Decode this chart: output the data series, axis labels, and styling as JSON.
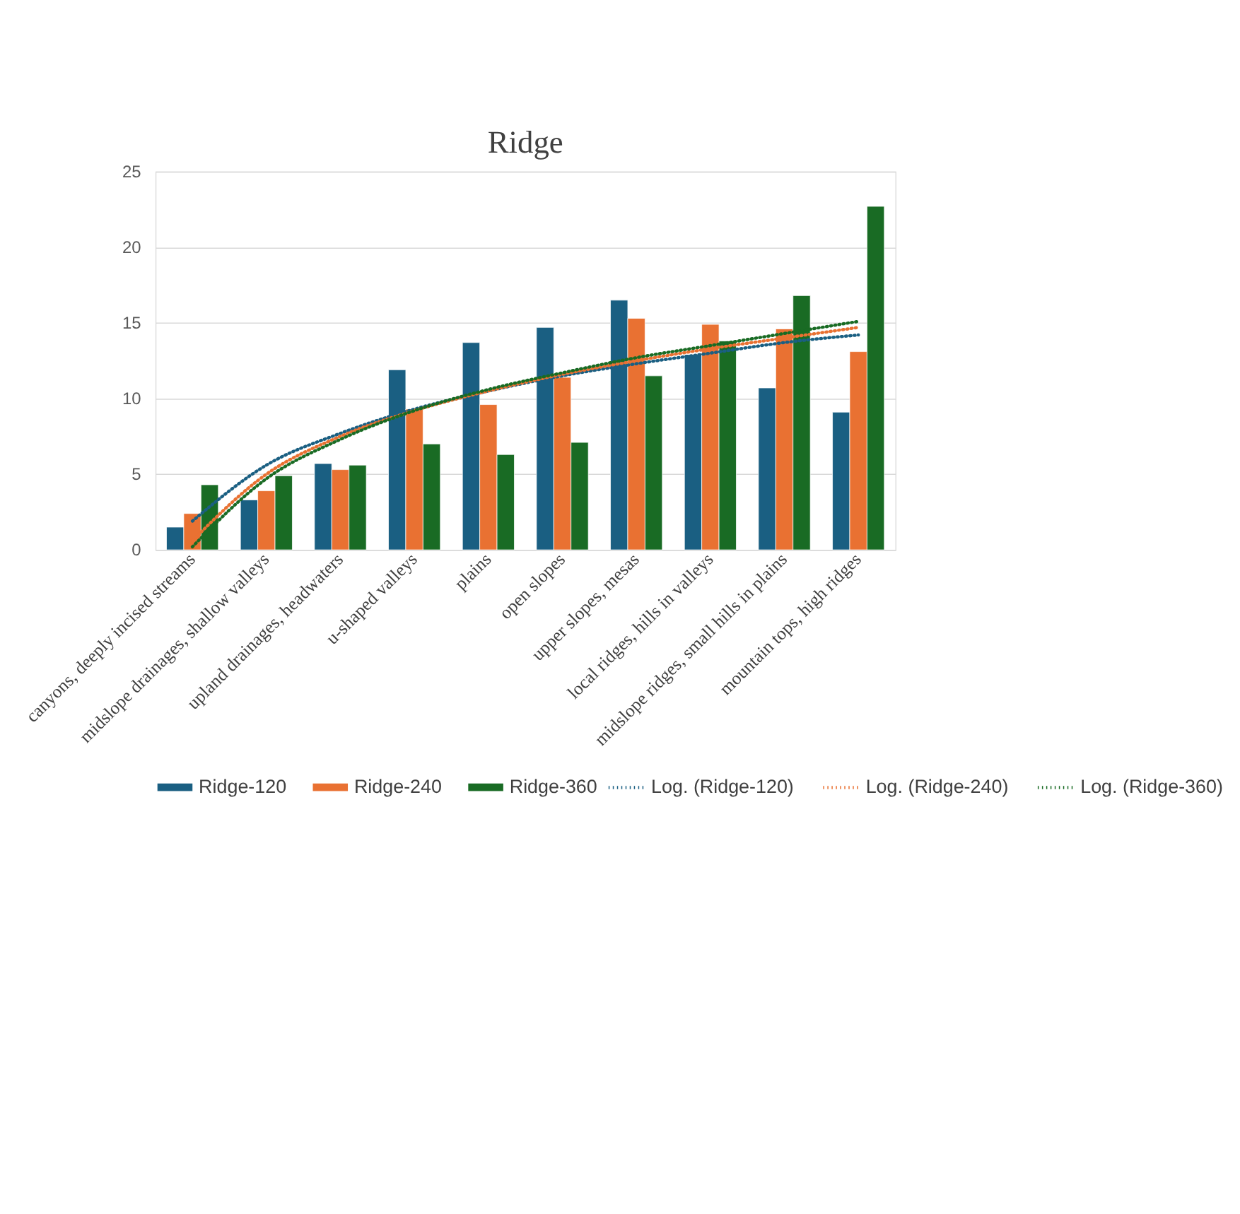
{
  "chart_data": {
    "type": "bar",
    "title": "Ridge",
    "categories": [
      "canyons, deeply incised streams",
      "midslope drainages, shallow valleys",
      "upland drainages, headwaters",
      "u-shaped valleys",
      "plains",
      "open slopes",
      "upper slopes, mesas",
      "local ridges, hills in valleys",
      "midslope ridges, small hills in plains",
      "mountain tops, high ridges"
    ],
    "series": [
      {
        "name": "Ridge-120",
        "color": "#1a5f82",
        "values": [
          1.5,
          3.3,
          5.7,
          11.9,
          13.7,
          14.7,
          16.5,
          12.9,
          10.7,
          9.1
        ]
      },
      {
        "name": "Ridge-240",
        "color": "#e97132",
        "values": [
          2.4,
          3.9,
          5.3,
          9.3,
          9.6,
          11.4,
          15.3,
          14.9,
          14.6,
          13.1
        ]
      },
      {
        "name": "Ridge-360",
        "color": "#196b24",
        "values": [
          4.3,
          4.9,
          5.6,
          7.0,
          6.3,
          7.1,
          11.5,
          13.8,
          16.8,
          22.7
        ]
      },
      {
        "name": "Log. (Ridge-120)",
        "type": "line",
        "line_style": "dotted",
        "color": "#1a5f82",
        "values": [
          1.9,
          5.6,
          7.7,
          9.3,
          10.5,
          11.5,
          12.3,
          13.0,
          13.7,
          14.2
        ]
      },
      {
        "name": "Log. (Ridge-240)",
        "type": "line",
        "line_style": "dotted",
        "color": "#e97132",
        "values": [
          0.6,
          5.0,
          7.5,
          9.2,
          10.5,
          11.6,
          12.5,
          13.3,
          14.0,
          14.7
        ]
      },
      {
        "name": "Log. (Ridge-360)",
        "type": "line",
        "line_style": "dotted",
        "color": "#196b24",
        "values": [
          0.2,
          4.7,
          7.3,
          9.2,
          10.6,
          11.7,
          12.7,
          13.5,
          14.3,
          15.1
        ]
      }
    ],
    "ylim": [
      0,
      25
    ],
    "yticks": [
      0,
      5,
      10,
      15,
      20,
      25
    ],
    "grid": "y",
    "legend": "bottom"
  }
}
